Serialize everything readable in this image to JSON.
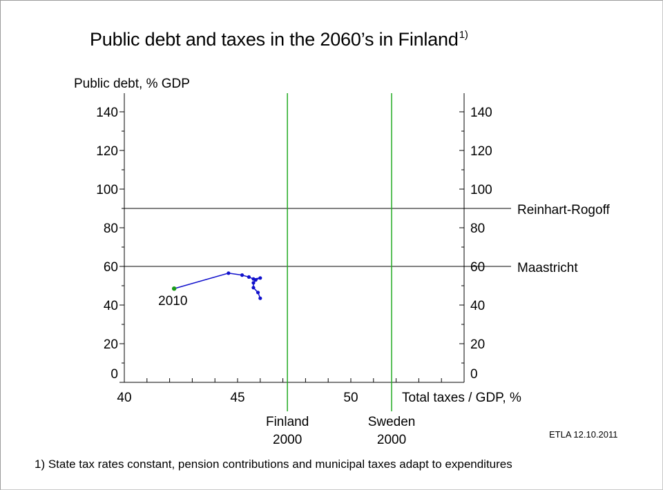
{
  "title": "Public debt and taxes in the 2060’s in Finland",
  "title_note": "1)",
  "credit": "ETLA 12.10.2011",
  "footnote": "1) State tax rates constant, pension contributions and municipal taxes adapt to expenditures",
  "chart_data": {
    "type": "line",
    "title": "Public debt and taxes in the 2060’s in Finland",
    "xlabel": "Total taxes / GDP, %",
    "ylabel": "Public debt, % GDP",
    "xlim": [
      40,
      55
    ],
    "ylim": [
      0,
      150
    ],
    "x_ticks": [
      40,
      45,
      50
    ],
    "y_ticks": [
      0,
      20,
      40,
      60,
      80,
      100,
      120,
      140
    ],
    "grid": false,
    "series": [
      {
        "color": "#1010cc",
        "start_color": "#1a9a1a",
        "start_label": "2010",
        "x": [
          42.2,
          44.6,
          45.2,
          45.5,
          45.7,
          46.0,
          45.8,
          45.7,
          45.7,
          45.9,
          46.0
        ],
        "y": [
          48.5,
          56.5,
          55.5,
          54.5,
          53.5,
          54.0,
          53.0,
          51.5,
          49.0,
          46.5,
          43.5
        ]
      }
    ],
    "reference_lines": {
      "horizontal": [
        {
          "label": "Reinhart-Rogoff",
          "y": 90
        },
        {
          "label": "Maastricht",
          "y": 60
        }
      ],
      "vertical": [
        {
          "label_line1": "Finland",
          "label_line2": "2000",
          "x": 47.2,
          "color": "#22aa22"
        },
        {
          "label_line1": "Sweden",
          "label_line2": "2000",
          "x": 51.8,
          "color": "#22aa22"
        }
      ]
    }
  }
}
